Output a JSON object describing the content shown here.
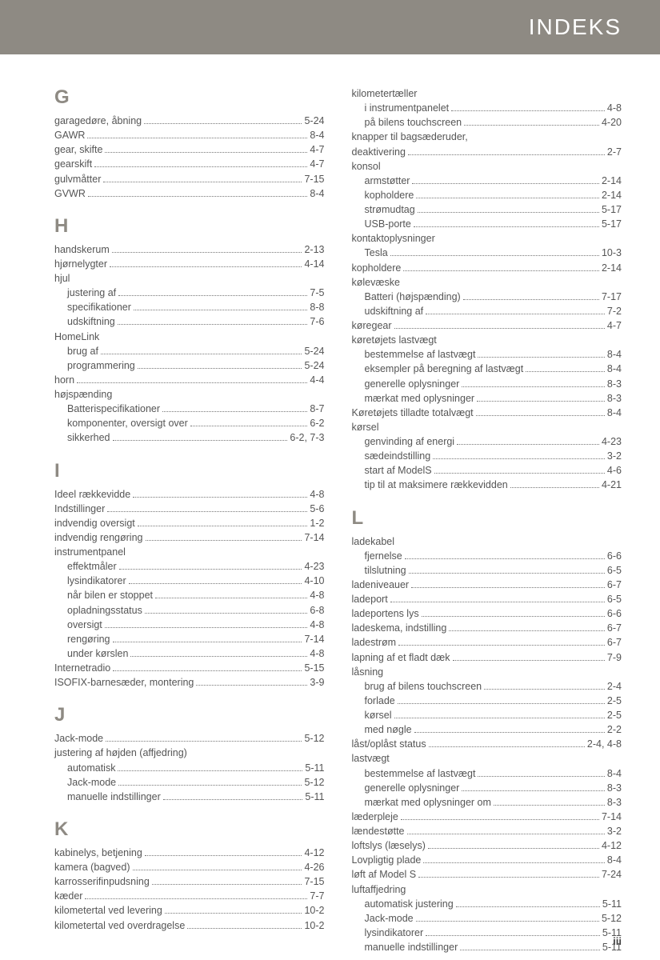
{
  "header": {
    "title": "INDEKS"
  },
  "page_number": "iii",
  "colors": {
    "header_bg": "#8e8a83",
    "header_text": "#ffffff",
    "letter": "#8e8a83",
    "text": "#555555",
    "background": "#ffffff"
  },
  "left": {
    "G": [
      {
        "label": "garagedøre, åbning",
        "pg": "5-24"
      },
      {
        "label": "GAWR",
        "pg": "8-4"
      },
      {
        "label": "gear, skifte",
        "pg": "4-7"
      },
      {
        "label": "gearskift",
        "pg": "4-7"
      },
      {
        "label": "gulvmåtter",
        "pg": "7-15"
      },
      {
        "label": "GVWR",
        "pg": "8-4"
      }
    ],
    "H": [
      {
        "label": "handskerum",
        "pg": "2-13"
      },
      {
        "label": "hjørnelygter",
        "pg": "4-14"
      },
      {
        "label": "hjul",
        "heading": true
      },
      {
        "label": "justering af",
        "pg": "7-5",
        "sub": true
      },
      {
        "label": "specifikationer",
        "pg": "8-8",
        "sub": true
      },
      {
        "label": "udskiftning",
        "pg": "7-6",
        "sub": true
      },
      {
        "label": "HomeLink",
        "heading": true
      },
      {
        "label": "brug af",
        "pg": "5-24",
        "sub": true
      },
      {
        "label": "programmering",
        "pg": "5-24",
        "sub": true
      },
      {
        "label": "horn",
        "pg": "4-4"
      },
      {
        "label": "højspænding",
        "heading": true
      },
      {
        "label": "Batterispecifikationer",
        "pg": "8-7",
        "sub": true
      },
      {
        "label": "komponenter, oversigt over",
        "pg": "6-2",
        "sub": true
      },
      {
        "label": "sikkerhed",
        "pg": "6-2, 7-3",
        "sub": true
      }
    ],
    "I": [
      {
        "label": "Ideel rækkevidde",
        "pg": "4-8"
      },
      {
        "label": "Indstillinger",
        "pg": "5-6"
      },
      {
        "label": "indvendig oversigt",
        "pg": "1-2"
      },
      {
        "label": "indvendig rengøring",
        "pg": "7-14"
      },
      {
        "label": "instrumentpanel",
        "heading": true
      },
      {
        "label": "effektmåler",
        "pg": "4-23",
        "sub": true
      },
      {
        "label": "lysindikatorer",
        "pg": "4-10",
        "sub": true
      },
      {
        "label": "når bilen er stoppet",
        "pg": "4-8",
        "sub": true
      },
      {
        "label": "opladningsstatus",
        "pg": "6-8",
        "sub": true
      },
      {
        "label": "oversigt",
        "pg": "4-8",
        "sub": true
      },
      {
        "label": "rengøring",
        "pg": "7-14",
        "sub": true
      },
      {
        "label": "under kørslen",
        "pg": "4-8",
        "sub": true
      },
      {
        "label": "Internetradio",
        "pg": "5-15"
      },
      {
        "label": "ISOFIX-barnesæder, montering",
        "pg": "3-9"
      }
    ],
    "J": [
      {
        "label": "Jack-mode",
        "pg": "5-12"
      },
      {
        "label": "justering af højden (affjedring)",
        "heading": true
      },
      {
        "label": "automatisk",
        "pg": "5-11",
        "sub": true
      },
      {
        "label": "Jack-mode",
        "pg": "5-12",
        "sub": true
      },
      {
        "label": "manuelle indstillinger",
        "pg": "5-11",
        "sub": true
      }
    ],
    "K": [
      {
        "label": "kabinelys, betjening",
        "pg": "4-12"
      },
      {
        "label": "kamera (bagved)",
        "pg": "4-26"
      },
      {
        "label": "karrosserifinpudsning",
        "pg": "7-15"
      },
      {
        "label": "kæder",
        "pg": "7-7"
      },
      {
        "label": "kilometertal ved levering",
        "pg": "10-2"
      },
      {
        "label": "kilometertal ved overdragelse",
        "pg": "10-2"
      }
    ]
  },
  "right": {
    "_cont": [
      {
        "label": "kilometertæller",
        "heading": true
      },
      {
        "label": "i instrumentpanelet",
        "pg": "4-8",
        "sub": true
      },
      {
        "label": "på bilens touchscreen",
        "pg": "4-20",
        "sub": true
      },
      {
        "label": "knapper til bagsæderuder,",
        "heading": true
      },
      {
        "label": "deaktivering",
        "pg": "2-7"
      },
      {
        "label": "konsol",
        "heading": true
      },
      {
        "label": "armstøtter",
        "pg": "2-14",
        "sub": true
      },
      {
        "label": "kopholdere",
        "pg": "2-14",
        "sub": true
      },
      {
        "label": "strømudtag",
        "pg": "5-17",
        "sub": true
      },
      {
        "label": "USB-porte",
        "pg": "5-17",
        "sub": true
      },
      {
        "label": "kontaktoplysninger",
        "heading": true
      },
      {
        "label": "Tesla",
        "pg": "10-3",
        "sub": true
      },
      {
        "label": "kopholdere",
        "pg": "2-14"
      },
      {
        "label": "kølevæske",
        "heading": true
      },
      {
        "label": "Batteri (højspænding)",
        "pg": "7-17",
        "sub": true
      },
      {
        "label": "udskiftning af",
        "pg": "7-2",
        "sub": true
      },
      {
        "label": "køregear",
        "pg": "4-7"
      },
      {
        "label": "køretøjets lastvægt",
        "heading": true
      },
      {
        "label": "bestemmelse af lastvægt",
        "pg": "8-4",
        "sub": true
      },
      {
        "label": "eksempler på beregning af lastvægt",
        "pg": "8-4",
        "sub": true
      },
      {
        "label": "generelle oplysninger",
        "pg": "8-3",
        "sub": true
      },
      {
        "label": "mærkat med oplysninger",
        "pg": "8-3",
        "sub": true
      },
      {
        "label": "Køretøjets tilladte totalvægt",
        "pg": "8-4"
      },
      {
        "label": "kørsel",
        "heading": true
      },
      {
        "label": "genvinding af energi",
        "pg": "4-23",
        "sub": true
      },
      {
        "label": "sædeindstilling",
        "pg": "3-2",
        "sub": true
      },
      {
        "label": "start af ModelS",
        "pg": "4-6",
        "sub": true
      },
      {
        "label": "tip til at maksimere rækkevidden",
        "pg": "4-21",
        "sub": true
      }
    ],
    "L": [
      {
        "label": "ladekabel",
        "heading": true
      },
      {
        "label": "fjernelse",
        "pg": "6-6",
        "sub": true
      },
      {
        "label": "tilslutning",
        "pg": "6-5",
        "sub": true
      },
      {
        "label": "ladeniveauer",
        "pg": "6-7"
      },
      {
        "label": "ladeport",
        "pg": "6-5"
      },
      {
        "label": "ladeportens lys",
        "pg": "6-6"
      },
      {
        "label": "ladeskema, indstilling",
        "pg": "6-7"
      },
      {
        "label": "ladestrøm",
        "pg": "6-7"
      },
      {
        "label": "lapning af et fladt dæk",
        "pg": "7-9"
      },
      {
        "label": "låsning",
        "heading": true
      },
      {
        "label": "brug af bilens touchscreen",
        "pg": "2-4",
        "sub": true
      },
      {
        "label": "forlade",
        "pg": "2-5",
        "sub": true
      },
      {
        "label": "kørsel",
        "pg": "2-5",
        "sub": true
      },
      {
        "label": "med nøgle",
        "pg": "2-2",
        "sub": true
      },
      {
        "label": "låst/oplåst status",
        "pg": "2-4, 4-8"
      },
      {
        "label": "lastvægt",
        "heading": true
      },
      {
        "label": "bestemmelse af lastvægt",
        "pg": "8-4",
        "sub": true
      },
      {
        "label": "generelle oplysninger",
        "pg": "8-3",
        "sub": true
      },
      {
        "label": "mærkat med oplysninger om",
        "pg": "8-3",
        "sub": true
      },
      {
        "label": "læderpleje",
        "pg": "7-14"
      },
      {
        "label": "lændestøtte",
        "pg": "3-2"
      },
      {
        "label": "loftslys (læselys)",
        "pg": "4-12"
      },
      {
        "label": "Lovpligtig plade",
        "pg": "8-4"
      },
      {
        "label": "løft af Model S",
        "pg": "7-24"
      },
      {
        "label": "luftaffjedring",
        "heading": true
      },
      {
        "label": "automatisk justering",
        "pg": "5-11",
        "sub": true
      },
      {
        "label": "Jack-mode",
        "pg": "5-12",
        "sub": true
      },
      {
        "label": "lysindikatorer",
        "pg": "5-11",
        "sub": true
      },
      {
        "label": "manuelle indstillinger",
        "pg": "5-11",
        "sub": true
      }
    ]
  }
}
